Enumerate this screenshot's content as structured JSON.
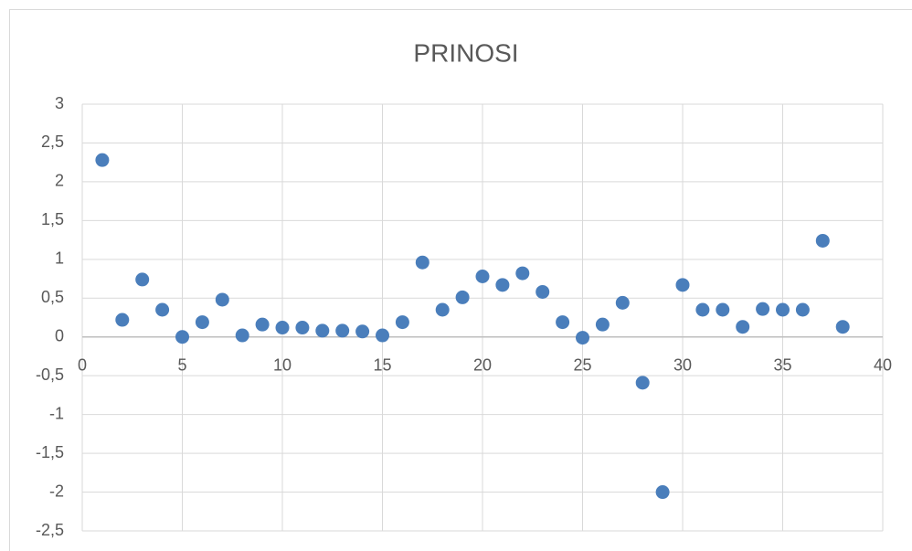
{
  "chart_data": {
    "type": "scatter",
    "title": "PRINOSI",
    "series": [
      {
        "color": "#4a7ebb",
        "x": [
          1,
          2,
          3,
          4,
          5,
          6,
          7,
          8,
          9,
          10,
          11,
          12,
          13,
          14,
          15,
          16,
          17,
          18,
          19,
          20,
          21,
          22,
          23,
          24,
          25,
          26,
          27,
          28,
          29,
          30,
          31,
          32,
          33,
          34,
          35,
          36,
          37,
          38
        ],
        "values": [
          2.28,
          0.22,
          0.74,
          0.35,
          0,
          0.19,
          0.48,
          0.02,
          0.16,
          0.12,
          0.12,
          0.08,
          0.08,
          0.07,
          0.02,
          0.19,
          0.96,
          0.35,
          0.51,
          0.78,
          0.67,
          0.82,
          0.58,
          0.19,
          -0.01,
          0.16,
          0.44,
          -0.59,
          -2.0,
          0.67,
          0.35,
          0.35,
          0.13,
          0.36,
          0.35,
          0.35,
          1.24,
          0.13
        ]
      }
    ],
    "xlim": [
      0,
      40
    ],
    "xticks": [
      0,
      5,
      10,
      15,
      20,
      25,
      30,
      35,
      40
    ],
    "ylim": [
      -2.5,
      3
    ],
    "yticks": [
      {
        "value": -2.5,
        "label": "-2,5"
      },
      -2,
      {
        "value": -1.5,
        "label": "-1,5"
      },
      -1,
      {
        "value": -0.5,
        "label": "-0,5"
      },
      0,
      {
        "value": 0.5,
        "label": "0,5"
      },
      1,
      {
        "value": 1.5,
        "label": "1,5"
      },
      2,
      {
        "value": 2.5,
        "label": "2,5"
      },
      3
    ],
    "grid": true
  }
}
